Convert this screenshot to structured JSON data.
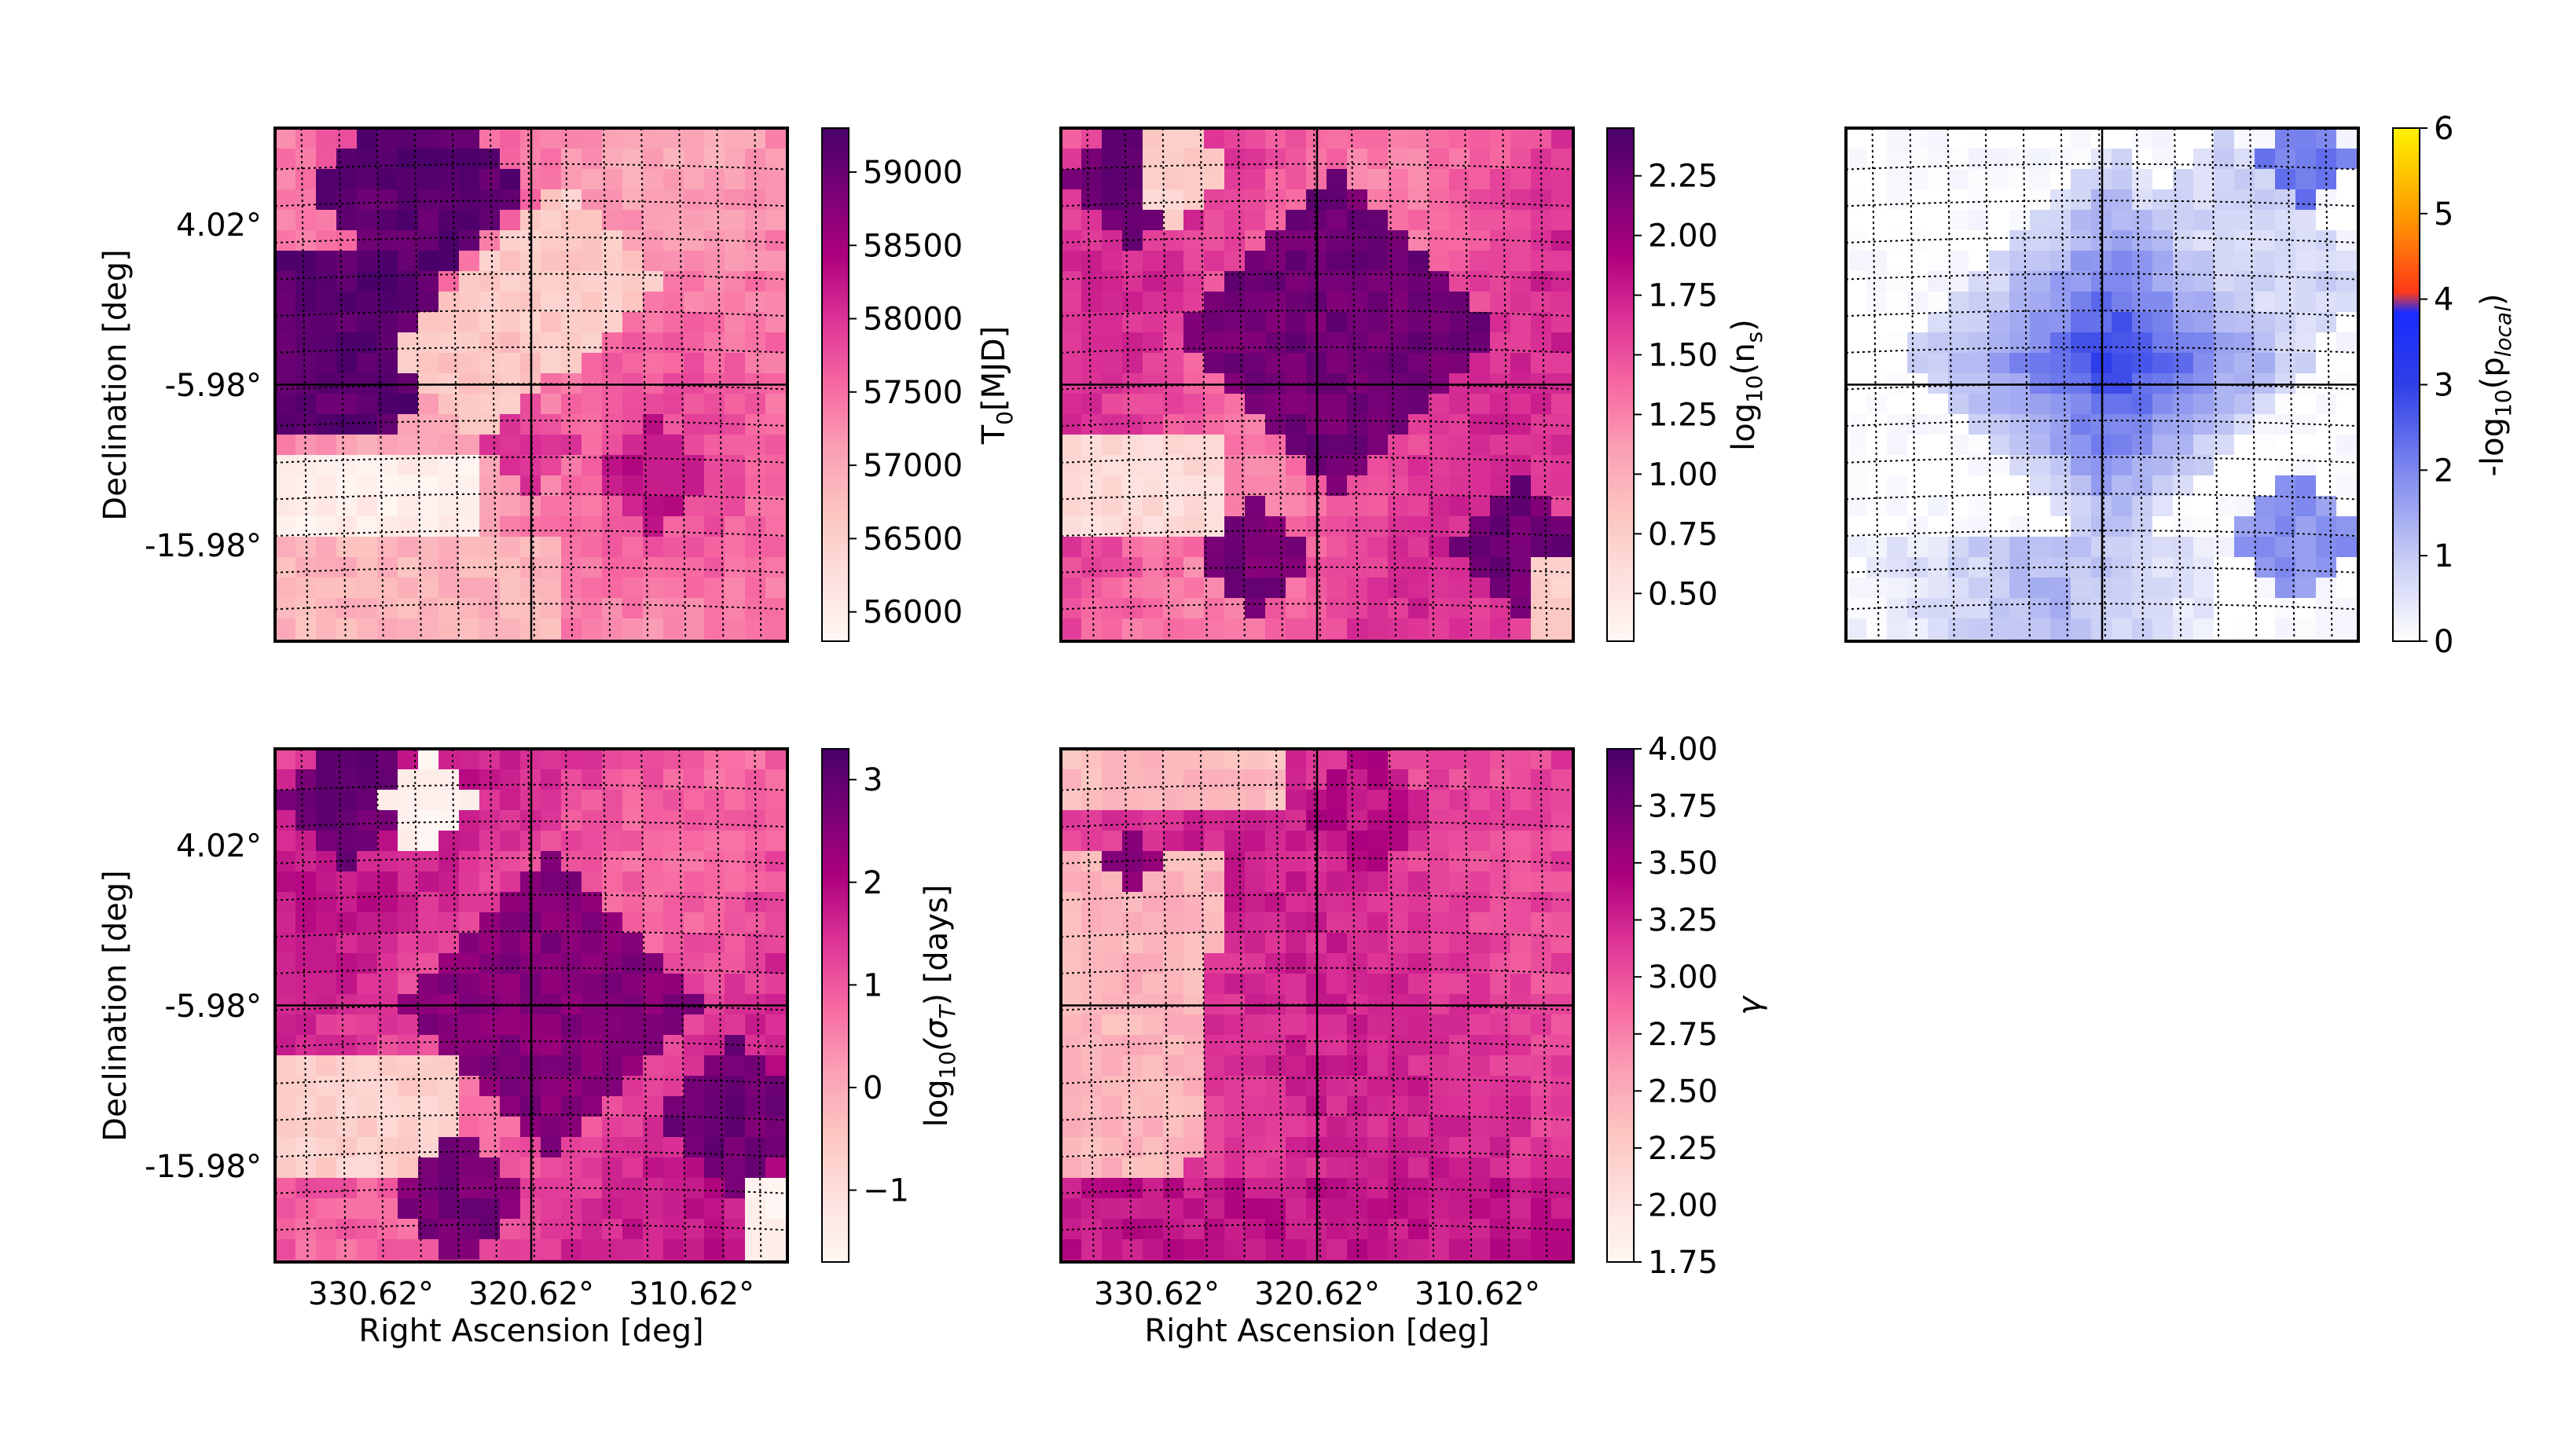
{
  "chart_data": [
    {
      "type": "heatmap",
      "id": "panel-t0",
      "xlabel": "",
      "ylabel": "Declination [deg]",
      "y_ticks": [
        "4.02°",
        "-5.98°",
        "-15.98°"
      ],
      "x_ticks": [],
      "colorbar": {
        "label_main": "T",
        "label_sub": "0",
        "label_tail": "[MJD]",
        "colormap": "RdPu",
        "range": [
          55800,
          59300
        ],
        "ticks": [
          "59000",
          "58500",
          "58000",
          "57500",
          "57000",
          "56500",
          "56000"
        ],
        "tick_values": [
          59000,
          58500,
          58000,
          57500,
          57000,
          56500,
          56000
        ]
      }
    },
    {
      "type": "heatmap",
      "id": "panel-ns",
      "xlabel": "",
      "ylabel": "",
      "y_ticks": [],
      "x_ticks": [],
      "colorbar": {
        "label_main": "log",
        "label_sub": "10",
        "label_tail": "(n",
        "label_sub2": "s",
        "label_end": ")",
        "colormap": "RdPu",
        "range": [
          0.3,
          2.45
        ],
        "ticks": [
          "2.25",
          "2.00",
          "1.75",
          "1.50",
          "1.25",
          "1.00",
          "0.75",
          "0.50"
        ],
        "tick_values": [
          2.25,
          2.0,
          1.75,
          1.5,
          1.25,
          1.0,
          0.75,
          0.5
        ]
      }
    },
    {
      "type": "heatmap",
      "id": "panel-plocal",
      "xlabel": "",
      "ylabel": "",
      "y_ticks": [],
      "x_ticks": [],
      "colorbar": {
        "label_main": "-log",
        "label_sub": "10",
        "label_tail": "(p",
        "label_sub2": "local",
        "label_end": ")",
        "colormap": "white-blue-red-yellow",
        "range": [
          0,
          6
        ],
        "ticks": [
          "6",
          "5",
          "4",
          "3",
          "2",
          "1",
          "0"
        ],
        "tick_values": [
          6,
          5,
          4,
          3,
          2,
          1,
          0
        ]
      }
    },
    {
      "type": "heatmap",
      "id": "panel-sigma",
      "xlabel": "Right Ascension [deg]",
      "ylabel": "Declination [deg]",
      "y_ticks": [
        "4.02°",
        "-5.98°",
        "-15.98°"
      ],
      "x_ticks": [
        "330.62°",
        "320.62°",
        "310.62°"
      ],
      "colorbar": {
        "label_main": "log",
        "label_sub": "10",
        "label_tail": "(σ",
        "label_sub2": "T",
        "label_end": ") [days]",
        "colormap": "RdPu",
        "range": [
          -1.7,
          3.3
        ],
        "ticks": [
          "3",
          "2",
          "1",
          "0",
          "−1"
        ],
        "tick_values": [
          3,
          2,
          1,
          0,
          -1
        ]
      }
    },
    {
      "type": "heatmap",
      "id": "panel-gamma",
      "xlabel": "Right Ascension [deg]",
      "ylabel": "",
      "y_ticks": [],
      "x_ticks": [
        "330.62°",
        "320.62°",
        "310.62°"
      ],
      "colorbar": {
        "label_main": "γ",
        "colormap": "RdPu",
        "range": [
          1.75,
          4.0
        ],
        "ticks": [
          "4.00",
          "3.75",
          "3.50",
          "3.25",
          "3.00",
          "2.75",
          "2.50",
          "2.25",
          "2.00",
          "1.75"
        ],
        "tick_values": [
          4.0,
          3.75,
          3.5,
          3.25,
          3.0,
          2.75,
          2.5,
          2.25,
          2.0,
          1.75
        ]
      }
    }
  ],
  "colors": {
    "rdpu": [
      "#fff7f3",
      "#fde0dd",
      "#fcc5c0",
      "#fa9fb5",
      "#f768a1",
      "#dd3497",
      "#ae017e",
      "#7a0177",
      "#49006a"
    ],
    "plocal": [
      "#ffffff",
      "#c7ccf4",
      "#7f89ee",
      "#2f3fe8",
      "#1a2cff",
      "#ff3a1a",
      "#ff9b00",
      "#fff200"
    ]
  }
}
